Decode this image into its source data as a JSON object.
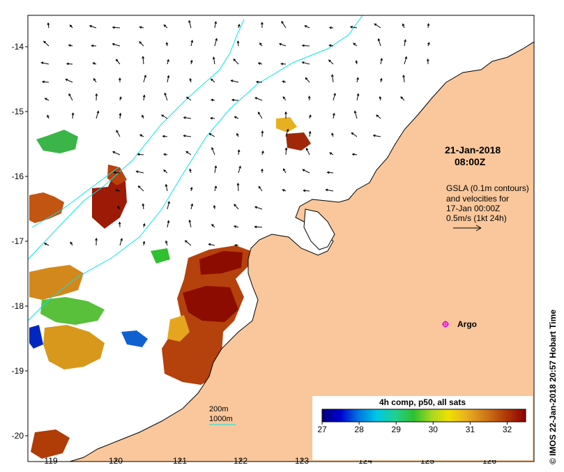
{
  "map": {
    "x_ticks": [
      "119",
      "120",
      "121",
      "122",
      "123",
      "124",
      "125",
      "126"
    ],
    "y_ticks": [
      "-14",
      "-15",
      "-16",
      "-17",
      "-18",
      "-19",
      "-20"
    ],
    "lon_range": [
      118.6,
      126.7
    ],
    "lat_range": [
      -20.1,
      -13.5
    ]
  },
  "annotations": {
    "date": "21-Jan-2018",
    "time": "08:00Z",
    "gsla_line1": "GSLA (0.1m contours)",
    "gsla_line2": "and velocities for",
    "gsla_line3": "17-Jan 00:00Z",
    "gsla_line4": "0.5m/s (1kt 24h)",
    "argo_label": "Argo",
    "depth_200": "200m",
    "depth_1000": "1000m",
    "credit": "© IMOS 22-Jan-2018 20:57 Hobart Time"
  },
  "colorbar": {
    "title": "4h comp, p50, all sats",
    "ticks": [
      "27",
      "28",
      "29",
      "30",
      "31",
      "32"
    ],
    "range": [
      27,
      32.5
    ]
  },
  "colors": {
    "land": "#f9c79b",
    "bathy": "#00e5ee",
    "argo": "#e000e0"
  }
}
